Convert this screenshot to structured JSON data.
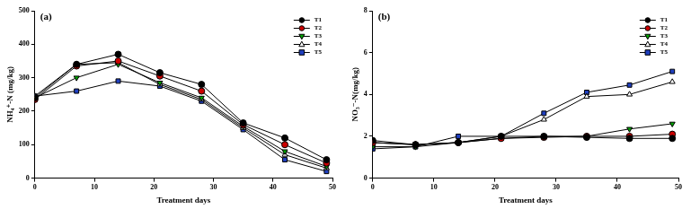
{
  "chart_data": [
    {
      "type": "line",
      "title": "(a)",
      "x_label": "Treatment days",
      "y_label": "NH₄⁺-N (mg/kg)",
      "x": [
        0,
        7,
        14,
        21,
        28,
        35,
        42,
        49
      ],
      "xlim": [
        0,
        50
      ],
      "xticks": [
        0,
        10,
        20,
        30,
        40,
        50
      ],
      "ylim": [
        0,
        500
      ],
      "yticks": [
        0,
        100,
        200,
        300,
        400,
        500
      ],
      "grid": false,
      "legend": "upper right",
      "series": [
        {
          "name": "T1",
          "color": "#000000",
          "marker": "circle",
          "values": [
            240,
            340,
            370,
            315,
            280,
            165,
            120,
            55
          ]
        },
        {
          "name": "T2",
          "color": "#cc0000",
          "marker": "circle",
          "values": [
            235,
            335,
            350,
            305,
            260,
            160,
            100,
            45
          ]
        },
        {
          "name": "T3",
          "color": "#00a000",
          "marker": "triangle-down",
          "values": [
            240,
            300,
            340,
            285,
            240,
            155,
            80,
            35
          ]
        },
        {
          "name": "T4",
          "color": "#ffffff",
          "marker": "triangle",
          "values": [
            245,
            340,
            345,
            280,
            235,
            150,
            70,
            30
          ]
        },
        {
          "name": "T5",
          "color": "#1f3fbf",
          "marker": "square",
          "values": [
            245,
            260,
            290,
            275,
            230,
            145,
            55,
            20
          ]
        }
      ]
    },
    {
      "type": "line",
      "title": "(b)",
      "x_label": "Treatment days",
      "y_label": "NO₃⁻-N(mg/kg)",
      "x": [
        0,
        7,
        14,
        21,
        28,
        35,
        42,
        49
      ],
      "xlim": [
        0,
        50
      ],
      "xticks": [
        0,
        10,
        20,
        30,
        40,
        50
      ],
      "ylim": [
        0,
        8
      ],
      "yticks": [
        0,
        2,
        4,
        6,
        8
      ],
      "grid": false,
      "legend": "upper right",
      "series": [
        {
          "name": "T1",
          "color": "#000000",
          "marker": "circle",
          "values": [
            1.8,
            1.6,
            1.7,
            2.0,
            2.0,
            1.95,
            1.9,
            1.9
          ]
        },
        {
          "name": "T2",
          "color": "#cc0000",
          "marker": "circle",
          "values": [
            1.7,
            1.6,
            1.7,
            1.9,
            1.95,
            2.0,
            2.0,
            2.1
          ]
        },
        {
          "name": "T3",
          "color": "#00a000",
          "marker": "triangle-down",
          "values": [
            1.5,
            1.5,
            1.7,
            1.9,
            2.0,
            2.0,
            2.35,
            2.6
          ]
        },
        {
          "name": "T4",
          "color": "#ffffff",
          "marker": "triangle",
          "values": [
            1.7,
            1.6,
            1.7,
            2.0,
            2.8,
            3.9,
            4.0,
            4.6
          ]
        },
        {
          "name": "T5",
          "color": "#1f3fbf",
          "marker": "square",
          "values": [
            1.4,
            1.5,
            2.0,
            2.0,
            3.1,
            4.1,
            4.45,
            5.1
          ]
        }
      ]
    }
  ]
}
